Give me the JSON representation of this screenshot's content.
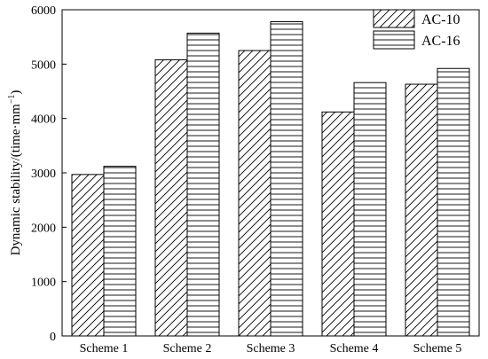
{
  "chart_data": {
    "type": "bar",
    "title": "",
    "xlabel": "",
    "ylabel": "Dynamic stability/(time·mm",
    "ylabel_sup": "−1",
    "ylabel_close": ")",
    "ylim": [
      0,
      6000
    ],
    "yticks": [
      0,
      1000,
      2000,
      3000,
      4000,
      5000,
      6000
    ],
    "categories": [
      "Scheme 1",
      "Scheme 2",
      "Scheme 3",
      "Scheme 4",
      "Scheme 5"
    ],
    "series": [
      {
        "name": "AC-10",
        "pattern": "diagonal-hatch",
        "values": [
          2970,
          5080,
          5250,
          4120,
          4630
        ]
      },
      {
        "name": "AC-16",
        "pattern": "horizontal-hatch",
        "values": [
          3120,
          5570,
          5780,
          4660,
          4920
        ]
      }
    ],
    "legend_position": "top-right",
    "grid": false,
    "colors": {
      "stroke": "#000000",
      "background": "#ffffff"
    }
  }
}
